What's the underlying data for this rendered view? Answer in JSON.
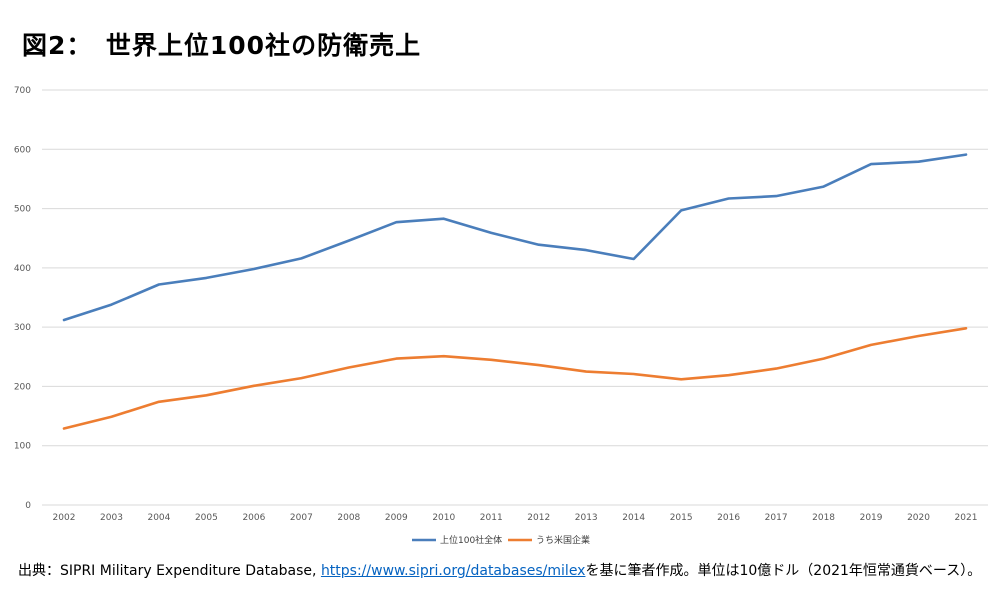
{
  "title": "図2：　世界上位100社の防衛売上",
  "footer": {
    "prefix": "出典：SIPRI Military Expenditure Database, ",
    "link": "https://www.sipri.org/databases/milex",
    "suffix": "を基に筆者作成。単位は10億ドル（2021年恒常通貨ベース）。"
  },
  "colors": {
    "series1": "#4a7ebb",
    "series2": "#ed7d31",
    "grid": "#d9d9d9"
  },
  "chart_data": {
    "type": "line",
    "title": "",
    "xlabel": "",
    "ylabel": "",
    "ylim": [
      0,
      700
    ],
    "yticks": [
      "0",
      "100",
      "200",
      "300",
      "400",
      "500",
      "600",
      "700"
    ],
    "categories": [
      "2002",
      "2003",
      "2004",
      "2005",
      "2006",
      "2007",
      "2008",
      "2009",
      "2010",
      "2011",
      "2012",
      "2013",
      "2014",
      "2015",
      "2016",
      "2017",
      "2018",
      "2019",
      "2020",
      "2021"
    ],
    "grid": true,
    "legend_position": "bottom",
    "series": [
      {
        "name": "上位100社全体",
        "values": [
          312,
          338,
          372,
          383,
          398,
          416,
          446,
          477,
          483,
          459,
          439,
          430,
          415,
          497,
          517,
          521,
          537,
          575,
          579,
          591
        ]
      },
      {
        "name": "うち米国企業",
        "values": [
          129,
          149,
          174,
          185,
          201,
          214,
          232,
          247,
          251,
          245,
          236,
          225,
          221,
          212,
          219,
          230,
          247,
          270,
          285,
          298
        ]
      }
    ]
  }
}
